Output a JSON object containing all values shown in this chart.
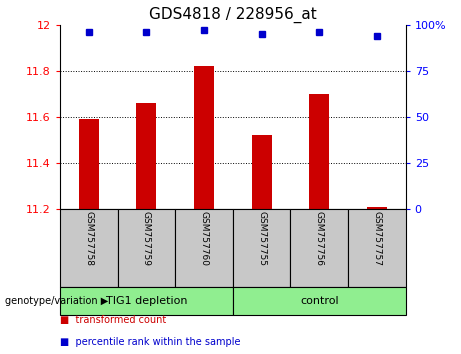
{
  "title": "GDS4818 / 228956_at",
  "samples": [
    "GSM757758",
    "GSM757759",
    "GSM757760",
    "GSM757755",
    "GSM757756",
    "GSM757757"
  ],
  "red_values": [
    11.59,
    11.66,
    11.82,
    11.52,
    11.7,
    11.21
  ],
  "blue_values": [
    96,
    96,
    97,
    95,
    96,
    94
  ],
  "ylim_left": [
    11.2,
    12.0
  ],
  "ylim_right": [
    0,
    100
  ],
  "yticks_left": [
    11.2,
    11.4,
    11.6,
    11.8,
    12.0
  ],
  "ytick_labels_left": [
    "11.2",
    "11.4",
    "11.6",
    "11.8",
    "12"
  ],
  "yticks_right": [
    0,
    25,
    50,
    75,
    100
  ],
  "ytick_labels_right": [
    "0",
    "25",
    "50",
    "75",
    "100%"
  ],
  "red_base": 11.2,
  "group1_label": "TIG1 depletion",
  "group2_label": "control",
  "group1_indices": [
    0,
    1,
    2
  ],
  "group2_indices": [
    3,
    4,
    5
  ],
  "legend_red_label": "transformed count",
  "legend_blue_label": "percentile rank within the sample",
  "genotype_label": "genotype/variation",
  "bar_color": "#cc0000",
  "dot_color": "#0000cc",
  "group_bg_color": "#90ee90",
  "sample_bg_color": "#c8c8c8",
  "title_fontsize": 11,
  "tick_fontsize": 8,
  "bar_width": 0.35
}
